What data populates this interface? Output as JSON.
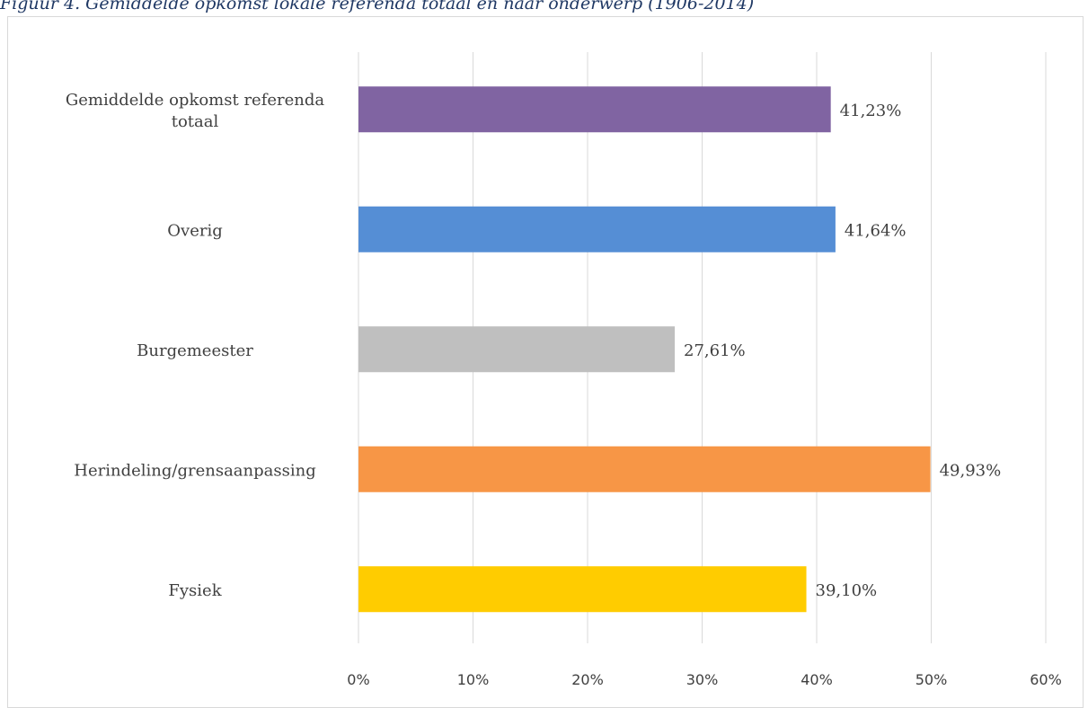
{
  "caption": "Figuur 4. Gemiddelde opkomst lokale referenda totaal en naar onderwerp (1906-2014)",
  "chart_data": {
    "type": "bar",
    "orientation": "horizontal",
    "categories": [
      [
        "Gemiddelde opkomst referenda",
        "totaal"
      ],
      [
        "Overig"
      ],
      [
        "Burgemeester"
      ],
      [
        "Herindeling/grensaanpassing"
      ],
      [
        "Fysiek"
      ]
    ],
    "values": [
      41.23,
      41.64,
      27.61,
      49.93,
      39.1
    ],
    "data_labels": [
      "41,23%",
      "41,64%",
      "27,61%",
      "49,93%",
      "39,10%"
    ],
    "colors": [
      "#8064a2",
      "#558ed5",
      "#bfbfbf",
      "#f79646",
      "#ffcc00"
    ],
    "xlim": [
      0,
      60
    ],
    "xticks": [
      0,
      10,
      20,
      30,
      40,
      50,
      60
    ],
    "xtick_labels": [
      "0%",
      "10%",
      "20%",
      "30%",
      "40%",
      "50%",
      "60%"
    ],
    "grid": true,
    "legend": false
  }
}
